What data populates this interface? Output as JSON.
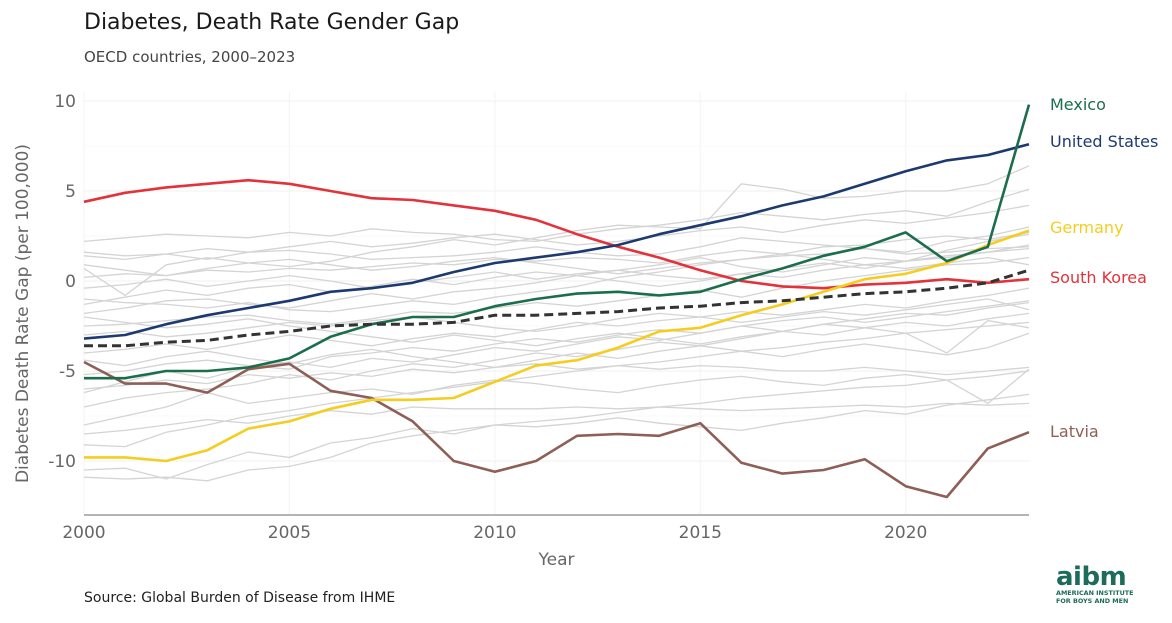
{
  "header": {
    "title": "Diabetes, Death Rate Gender Gap",
    "subtitle": "OECD countries, 2000–2023"
  },
  "footer": {
    "source": "Source: Global Burden of Disease from IHME",
    "logo_word": "aibm",
    "logo_line1": "AMERICAN INSTITUTE",
    "logo_line2": "FOR BOYS AND MEN"
  },
  "chart_data": {
    "type": "line",
    "xlabel": "Year",
    "ylabel": "Diabetes Death Rate Gap (per 100,000)",
    "xlim": [
      2000,
      2023
    ],
    "ylim": [
      -13,
      10.5
    ],
    "xticks": [
      2000,
      2005,
      2010,
      2015,
      2020
    ],
    "yticks": [
      -10,
      -5,
      0,
      5,
      10
    ],
    "x": [
      2000,
      2001,
      2002,
      2003,
      2004,
      2005,
      2006,
      2007,
      2008,
      2009,
      2010,
      2011,
      2012,
      2013,
      2014,
      2015,
      2016,
      2017,
      2018,
      2019,
      2020,
      2021,
      2022,
      2023
    ],
    "series": [
      {
        "name": "Mexico",
        "color": "#1b6e4c",
        "values": [
          -5.4,
          -5.4,
          -5.0,
          -5.0,
          -4.8,
          -4.3,
          -3.1,
          -2.4,
          -2.0,
          -2.0,
          -1.4,
          -1.0,
          -0.7,
          -0.6,
          -0.8,
          -0.6,
          0.1,
          0.7,
          1.4,
          1.9,
          2.7,
          1.1,
          1.9,
          9.8
        ]
      },
      {
        "name": "United States",
        "color": "#1d3a70",
        "values": [
          -3.2,
          -3.0,
          -2.4,
          -1.9,
          -1.5,
          -1.1,
          -0.6,
          -0.4,
          -0.1,
          0.5,
          1.0,
          1.3,
          1.6,
          2.0,
          2.6,
          3.1,
          3.6,
          4.2,
          4.7,
          5.4,
          6.1,
          6.7,
          7.0,
          7.6
        ]
      },
      {
        "name": "Germany",
        "color": "#f5cd1f",
        "values": [
          -9.8,
          -9.8,
          -10.0,
          -9.4,
          -8.2,
          -7.8,
          -7.1,
          -6.6,
          -6.6,
          -6.5,
          -5.6,
          -4.7,
          -4.4,
          -3.7,
          -2.8,
          -2.6,
          -1.9,
          -1.3,
          -0.6,
          0.1,
          0.4,
          1.0,
          2.0,
          2.8
        ]
      },
      {
        "name": "South Korea",
        "color": "#e3323a",
        "values": [
          4.4,
          4.9,
          5.2,
          5.4,
          5.6,
          5.4,
          5.0,
          4.6,
          4.5,
          4.2,
          3.9,
          3.4,
          2.6,
          1.9,
          1.3,
          0.6,
          0.0,
          -0.3,
          -0.4,
          -0.2,
          -0.1,
          0.1,
          -0.1,
          0.1
        ]
      },
      {
        "name": "Latvia",
        "color": "#8e5f56",
        "values": [
          -4.5,
          -5.7,
          -5.7,
          -6.2,
          -4.9,
          -4.6,
          -6.1,
          -6.5,
          -7.8,
          -10.0,
          -10.6,
          -10.0,
          -8.6,
          -8.5,
          -8.6,
          -7.9,
          -10.1,
          -10.7,
          -10.5,
          -9.9,
          -11.4,
          -12.0,
          -9.3,
          -8.4
        ]
      },
      {
        "name": "",
        "style": "dashed",
        "color": "#333333",
        "values": [
          -3.6,
          -3.6,
          -3.4,
          -3.3,
          -3.0,
          -2.8,
          -2.5,
          -2.4,
          -2.4,
          -2.3,
          -1.9,
          -1.9,
          -1.8,
          -1.7,
          -1.5,
          -1.4,
          -1.2,
          -1.1,
          -0.9,
          -0.7,
          -0.6,
          -0.4,
          -0.1,
          0.6
        ]
      }
    ],
    "background_series": [
      [
        2.2,
        2.4,
        2.6,
        2.5,
        2.4,
        2.7,
        2.5,
        2.9,
        2.7,
        2.6,
        2.3,
        2.2,
        2.6,
        2.9,
        3.1,
        3.4,
        3.8,
        3.6,
        3.4,
        3.7,
        3.9,
        3.6,
        4.4,
        5.1
      ],
      [
        1.6,
        1.4,
        1.5,
        1.2,
        1.6,
        1.7,
        1.5,
        1.2,
        1.3,
        1.4,
        1.6,
        1.9,
        1.6,
        1.4,
        1.5,
        1.9,
        2.4,
        2.2,
        2.0,
        1.8,
        1.5,
        1.6,
        1.8,
        1.9
      ],
      [
        0.7,
        -0.8,
        0.9,
        1.3,
        1.0,
        0.8,
        1.1,
        1.6,
        1.9,
        2.3,
        2.0,
        2.4,
        2.8,
        3.1,
        3.0,
        2.9,
        5.4,
        5.1,
        4.6,
        4.7,
        5.0,
        5.0,
        5.4,
        6.4
      ],
      [
        -1.0,
        -1.2,
        -1.3,
        -1.5,
        -1.2,
        -1.6,
        -1.7,
        -1.4,
        -1.1,
        -1.3,
        -0.9,
        -0.6,
        -0.3,
        0.2,
        0.5,
        0.9,
        1.2,
        1.4,
        1.5,
        1.8,
        1.6,
        2.2,
        2.5,
        3.0
      ],
      [
        -1.8,
        -1.5,
        -1.1,
        -1.0,
        -1.3,
        -1.5,
        -1.1,
        -0.7,
        -1.0,
        -0.6,
        -0.4,
        -0.1,
        0.3,
        0.6,
        0.9,
        1.3,
        0.8,
        0.5,
        0.9,
        1.3,
        1.1,
        1.7,
        2.2,
        2.6
      ],
      [
        -2.5,
        -2.4,
        -2.2,
        -2.0,
        -1.9,
        -2.2,
        -2.4,
        -2.1,
        -1.7,
        -1.8,
        -1.5,
        -1.2,
        -1.4,
        -1.1,
        -0.8,
        -0.5,
        -0.9,
        -0.4,
        0.0,
        0.3,
        0.6,
        0.9,
        1.0,
        1.3
      ],
      [
        0.2,
        0.4,
        0.3,
        0.6,
        0.5,
        0.7,
        0.6,
        0.8,
        1.0,
        0.9,
        1.2,
        1.1,
        1.3,
        1.2,
        1.0,
        1.4,
        1.7,
        1.5,
        1.9,
        2.0,
        2.3,
        2.5,
        2.3,
        2.7
      ],
      [
        -4.0,
        -3.8,
        -3.5,
        -3.8,
        -3.4,
        -3.0,
        -3.3,
        -3.6,
        -3.2,
        -2.9,
        -3.1,
        -2.7,
        -2.3,
        -2.5,
        -2.2,
        -2.0,
        -1.7,
        -1.9,
        -1.6,
        -1.3,
        -1.5,
        -1.1,
        -0.8,
        -0.4
      ],
      [
        -6.2,
        -5.6,
        -5.0,
        -5.4,
        -4.8,
        -4.5,
        -4.8,
        -4.3,
        -4.5,
        -4.1,
        -3.7,
        -3.9,
        -3.5,
        -3.1,
        -3.3,
        -2.9,
        -2.5,
        -2.8,
        -2.4,
        -2.1,
        -1.8,
        -1.9,
        -1.5,
        -1.2
      ],
      [
        -7.0,
        -6.5,
        -6.2,
        -6.0,
        -5.7,
        -5.2,
        -5.5,
        -5.0,
        -4.6,
        -4.8,
        -4.4,
        -4.0,
        -4.2,
        -3.8,
        -3.4,
        -3.6,
        -3.2,
        -2.8,
        -3.0,
        -2.6,
        -2.3,
        -2.5,
        -2.1,
        -1.8
      ],
      [
        -9.1,
        -9.2,
        -8.4,
        -8.0,
        -7.5,
        -7.2,
        -6.8,
        -6.5,
        -6.2,
        -5.9,
        -5.6,
        -5.3,
        -5.0,
        -4.7,
        -4.5,
        -4.2,
        -3.9,
        -3.7,
        -3.4,
        -3.2,
        -2.9,
        -2.7,
        -2.5,
        -2.3
      ],
      [
        -10.9,
        -11.0,
        -10.9,
        -11.1,
        -10.5,
        -10.3,
        -9.8,
        -9.0,
        -8.6,
        -8.3,
        -8.0,
        -7.8,
        -7.6,
        -7.3,
        -7.0,
        -6.8,
        -6.5,
        -6.3,
        -6.1,
        -5.9,
        -5.8,
        -5.5,
        -5.3,
        -5.0
      ],
      [
        -10.5,
        -10.4,
        -11.0,
        -10.2,
        -9.5,
        -9.8,
        -9.0,
        -8.7,
        -8.2,
        -8.5,
        -8.0,
        -8.1,
        -7.9,
        -7.6,
        -7.9,
        -8.1,
        -8.3,
        -7.9,
        -7.6,
        -7.2,
        -7.4,
        -6.9,
        -6.6,
        -6.3
      ],
      [
        -8.0,
        -7.5,
        -7.0,
        -6.2,
        -6.8,
        -6.5,
        -6.2,
        -6.0,
        -6.3,
        -5.8,
        -5.5,
        -5.7,
        -6.0,
        -6.2,
        -5.8,
        -5.5,
        -5.3,
        -5.6,
        -5.8,
        -5.4,
        -5.2,
        -5.5,
        -6.8,
        -4.9
      ],
      [
        -5.2,
        -5.0,
        -4.6,
        -4.4,
        -4.7,
        -4.9,
        -4.2,
        -4.0,
        -3.7,
        -3.9,
        -3.5,
        -3.2,
        -3.4,
        -3.0,
        -2.7,
        -2.9,
        -2.5,
        -2.2,
        -2.0,
        -2.3,
        -2.0,
        -1.7,
        -1.4,
        -1.1
      ],
      [
        -1.3,
        -0.9,
        -0.5,
        -0.8,
        -0.4,
        -0.2,
        -0.6,
        -0.3,
        0.1,
        -0.2,
        0.2,
        0.5,
        0.3,
        0.0,
        -0.3,
        0.0,
        0.4,
        0.2,
        0.6,
        0.9,
        0.7,
        1.0,
        1.3,
        0.9
      ],
      [
        -3.0,
        -2.8,
        -3.1,
        -2.9,
        -2.6,
        -2.3,
        -2.5,
        -2.2,
        -2.0,
        -2.3,
        -2.6,
        -2.8,
        -2.5,
        -2.1,
        -1.8,
        -2.0,
        -2.3,
        -2.0,
        -1.7,
        -1.9,
        -1.6,
        -1.3,
        -1.0,
        -1.6
      ],
      [
        0.9,
        0.6,
        0.3,
        0.7,
        1.0,
        1.2,
        0.9,
        0.6,
        0.8,
        1.1,
        1.3,
        1.0,
        0.7,
        0.4,
        0.7,
        1.0,
        1.2,
        1.5,
        1.2,
        0.9,
        1.1,
        1.4,
        1.6,
        1.8
      ],
      [
        -2.0,
        -2.3,
        -2.6,
        -2.4,
        -2.1,
        -2.5,
        -2.8,
        -3.1,
        -3.4,
        -3.0,
        -3.3,
        -3.6,
        -3.2,
        -2.9,
        -3.2,
        -3.5,
        -3.1,
        -2.8,
        -2.4,
        -2.6,
        -2.9,
        -4.0,
        -2.2,
        -2.6
      ],
      [
        -4.4,
        -4.7,
        -4.2,
        -3.9,
        -4.3,
        -4.6,
        -4.1,
        -3.8,
        -4.2,
        -4.5,
        -4.8,
        -4.4,
        -4.0,
        -4.3,
        -3.9,
        -3.6,
        -3.9,
        -4.2,
        -3.8,
        -3.5,
        -3.8,
        -4.1,
        -3.7,
        -2.9
      ],
      [
        -6.0,
        -5.8,
        -5.5,
        -5.7,
        -5.2,
        -5.4,
        -5.1,
        -5.3,
        -4.9,
        -5.1,
        -4.8,
        -4.6,
        -4.9,
        -4.7,
        -4.9,
        -4.7,
        -4.8,
        -5.0,
        -5.0,
        -4.8,
        -5.0,
        -5.2,
        -5.0,
        -4.8
      ],
      [
        -8.5,
        -8.3,
        -8.0,
        -7.7,
        -7.9,
        -7.5,
        -7.2,
        -7.4,
        -7.0,
        -7.1,
        -7.1,
        -7.1,
        -7.0,
        -7.1,
        -7.0,
        -7.1,
        -7.2,
        -7.1,
        -7.0,
        -6.9,
        -7.0,
        -6.8,
        -6.9,
        -6.8
      ],
      [
        1.4,
        1.2,
        1.5,
        1.8,
        1.6,
        1.9,
        2.2,
        1.9,
        2.1,
        2.4,
        2.6,
        2.3,
        2.0,
        2.2,
        2.5,
        2.8,
        3.0,
        2.7,
        3.1,
        3.4,
        3.2,
        3.5,
        3.8,
        4.2
      ],
      [
        -0.4,
        -0.2,
        0.1,
        -0.3,
        0.0,
        0.3,
        0.0,
        -0.4,
        -0.1,
        0.2,
        0.5,
        0.1,
        0.4,
        0.6,
        0.3,
        0.1,
        0.4,
        0.7,
        1.0,
        0.7,
        1.1,
        1.3,
        1.6,
        2.0
      ]
    ]
  }
}
